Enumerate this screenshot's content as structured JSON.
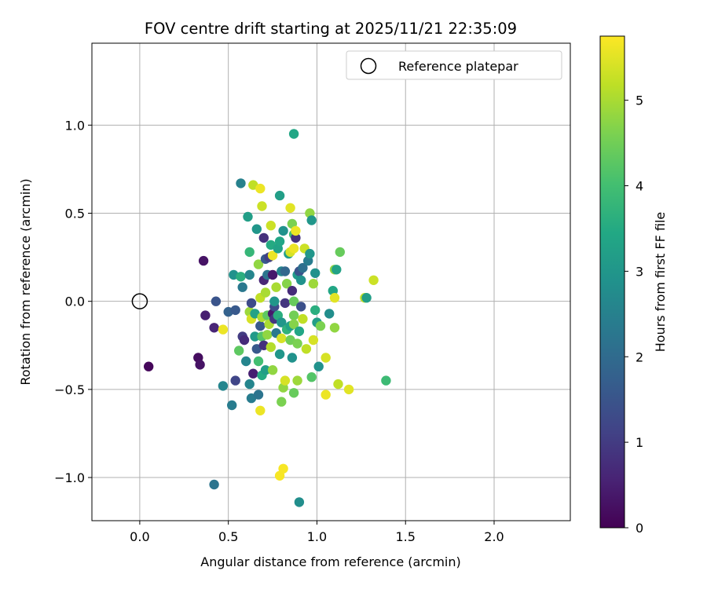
{
  "chart_data": {
    "type": "scatter",
    "title": "FOV centre drift starting at 2025/11/21 22:35:09",
    "xlabel": "Angular distance from reference (arcmin)",
    "ylabel": "Rotation from reference (arcmin)",
    "xlim": [
      -0.27,
      2.43
    ],
    "ylim": [
      -1.245,
      1.465
    ],
    "xticks": [
      0.0,
      0.5,
      1.0,
      1.5,
      2.0
    ],
    "xtick_labels": [
      "0.0",
      "0.5",
      "1.0",
      "1.5",
      "2.0"
    ],
    "yticks": [
      -1.0,
      -0.5,
      0.0,
      0.5,
      1.0
    ],
    "ytick_labels": [
      "−1.0",
      "−0.5",
      "0.0",
      "0.5",
      "1.0"
    ],
    "grid": true,
    "legend": {
      "placement": "top-right",
      "entries": [
        "Reference platepar"
      ]
    },
    "reference_point": {
      "x": 0.0,
      "y": 0.0,
      "label": "Reference platepar"
    },
    "colorbar": {
      "label": "Hours from first FF file",
      "colormap": "viridis",
      "range": [
        0,
        5.75
      ],
      "ticks": [
        0,
        1,
        2,
        3,
        4,
        5
      ],
      "tick_labels": [
        "0",
        "1",
        "2",
        "3",
        "4",
        "5"
      ]
    },
    "points": [
      {
        "x": 0.05,
        "y": -0.37,
        "t": 0.1
      },
      {
        "x": 0.33,
        "y": -0.32,
        "t": 0.2
      },
      {
        "x": 0.34,
        "y": -0.36,
        "t": 0.3
      },
      {
        "x": 0.36,
        "y": 0.23,
        "t": 0.3
      },
      {
        "x": 0.37,
        "y": -0.08,
        "t": 0.5
      },
      {
        "x": 0.42,
        "y": -0.15,
        "t": 0.6
      },
      {
        "x": 0.43,
        "y": 0.0,
        "t": 1.5
      },
      {
        "x": 0.42,
        "y": -1.04,
        "t": 2.2
      },
      {
        "x": 0.47,
        "y": -0.16,
        "t": 5.6
      },
      {
        "x": 0.47,
        "y": -0.48,
        "t": 2.6
      },
      {
        "x": 0.5,
        "y": -0.06,
        "t": 1.8
      },
      {
        "x": 0.52,
        "y": -0.59,
        "t": 2.4
      },
      {
        "x": 0.53,
        "y": 0.15,
        "t": 2.9
      },
      {
        "x": 0.54,
        "y": -0.05,
        "t": 1.6
      },
      {
        "x": 0.54,
        "y": -0.45,
        "t": 1.2
      },
      {
        "x": 0.56,
        "y": -0.28,
        "t": 4.3
      },
      {
        "x": 0.57,
        "y": 0.67,
        "t": 2.5
      },
      {
        "x": 0.57,
        "y": 0.14,
        "t": 3.6
      },
      {
        "x": 0.58,
        "y": -0.2,
        "t": 1.0
      },
      {
        "x": 0.58,
        "y": 0.08,
        "t": 2.3
      },
      {
        "x": 0.59,
        "y": -0.22,
        "t": 0.7
      },
      {
        "x": 0.6,
        "y": -0.34,
        "t": 2.6
      },
      {
        "x": 0.61,
        "y": 0.48,
        "t": 3.2
      },
      {
        "x": 0.62,
        "y": -0.06,
        "t": 4.9
      },
      {
        "x": 0.62,
        "y": 0.28,
        "t": 3.8
      },
      {
        "x": 0.62,
        "y": 0.15,
        "t": 2.6
      },
      {
        "x": 0.62,
        "y": -0.47,
        "t": 2.6
      },
      {
        "x": 0.63,
        "y": -0.55,
        "t": 2.4
      },
      {
        "x": 0.63,
        "y": -0.01,
        "t": 1.3
      },
      {
        "x": 0.63,
        "y": -0.1,
        "t": 5.4
      },
      {
        "x": 0.64,
        "y": 0.66,
        "t": 5.2
      },
      {
        "x": 0.64,
        "y": -0.41,
        "t": 0.5
      },
      {
        "x": 0.65,
        "y": -0.2,
        "t": 3.1
      },
      {
        "x": 0.65,
        "y": -0.07,
        "t": 3.3
      },
      {
        "x": 0.66,
        "y": 0.41,
        "t": 3.0
      },
      {
        "x": 0.66,
        "y": -0.27,
        "t": 1.6
      },
      {
        "x": 0.67,
        "y": -0.34,
        "t": 4.0
      },
      {
        "x": 0.67,
        "y": 0.21,
        "t": 4.8
      },
      {
        "x": 0.67,
        "y": -0.53,
        "t": 2.2
      },
      {
        "x": 0.68,
        "y": 0.02,
        "t": 5.2
      },
      {
        "x": 0.68,
        "y": -0.14,
        "t": 1.6
      },
      {
        "x": 0.68,
        "y": 0.64,
        "t": 5.6
      },
      {
        "x": 0.68,
        "y": -0.62,
        "t": 5.6
      },
      {
        "x": 0.69,
        "y": -0.2,
        "t": 4.2
      },
      {
        "x": 0.69,
        "y": -0.42,
        "t": 3.5
      },
      {
        "x": 0.69,
        "y": 0.54,
        "t": 5.3
      },
      {
        "x": 0.69,
        "y": -0.09,
        "t": 5.0
      },
      {
        "x": 0.7,
        "y": 0.12,
        "t": 0.6
      },
      {
        "x": 0.7,
        "y": 0.36,
        "t": 0.8
      },
      {
        "x": 0.7,
        "y": -0.25,
        "t": 0.8
      },
      {
        "x": 0.71,
        "y": 0.24,
        "t": 1.6
      },
      {
        "x": 0.71,
        "y": -0.39,
        "t": 3.2
      },
      {
        "x": 0.71,
        "y": 0.05,
        "t": 5.0
      },
      {
        "x": 0.72,
        "y": 0.15,
        "t": 2.2
      },
      {
        "x": 0.72,
        "y": -0.08,
        "t": 4.3
      },
      {
        "x": 0.72,
        "y": -0.19,
        "t": 4.8
      },
      {
        "x": 0.73,
        "y": -0.13,
        "t": 5.0
      },
      {
        "x": 0.73,
        "y": 0.25,
        "t": 1.1
      },
      {
        "x": 0.74,
        "y": 0.43,
        "t": 5.3
      },
      {
        "x": 0.74,
        "y": -0.26,
        "t": 5.1
      },
      {
        "x": 0.74,
        "y": 0.32,
        "t": 3.5
      },
      {
        "x": 0.75,
        "y": -0.07,
        "t": 0.4
      },
      {
        "x": 0.75,
        "y": 0.26,
        "t": 5.6
      },
      {
        "x": 0.75,
        "y": 0.15,
        "t": 0.4
      },
      {
        "x": 0.75,
        "y": -0.39,
        "t": 4.8
      },
      {
        "x": 0.76,
        "y": -0.03,
        "t": 1.3
      },
      {
        "x": 0.76,
        "y": -0.1,
        "t": 0.9
      },
      {
        "x": 0.76,
        "y": 0.0,
        "t": 3.0
      },
      {
        "x": 0.77,
        "y": -0.18,
        "t": 2.3
      },
      {
        "x": 0.77,
        "y": 0.08,
        "t": 5.0
      },
      {
        "x": 0.78,
        "y": 0.3,
        "t": 3.3
      },
      {
        "x": 0.78,
        "y": -0.08,
        "t": 3.6
      },
      {
        "x": 0.79,
        "y": 0.6,
        "t": 3.2
      },
      {
        "x": 0.79,
        "y": 0.34,
        "t": 3.4
      },
      {
        "x": 0.79,
        "y": -0.3,
        "t": 3.0
      },
      {
        "x": 0.79,
        "y": -0.99,
        "t": 5.7
      },
      {
        "x": 0.8,
        "y": -0.21,
        "t": 5.4
      },
      {
        "x": 0.8,
        "y": -0.57,
        "t": 4.6
      },
      {
        "x": 0.8,
        "y": -0.12,
        "t": 3.0
      },
      {
        "x": 0.8,
        "y": 0.17,
        "t": 2.6
      },
      {
        "x": 0.81,
        "y": 0.4,
        "t": 2.9
      },
      {
        "x": 0.81,
        "y": -0.49,
        "t": 4.8
      },
      {
        "x": 0.81,
        "y": -0.95,
        "t": 5.7
      },
      {
        "x": 0.82,
        "y": -0.45,
        "t": 5.4
      },
      {
        "x": 0.82,
        "y": -0.01,
        "t": 0.9
      },
      {
        "x": 0.82,
        "y": 0.17,
        "t": 1.9
      },
      {
        "x": 0.83,
        "y": -0.16,
        "t": 3.7
      },
      {
        "x": 0.83,
        "y": 0.1,
        "t": 4.7
      },
      {
        "x": 0.84,
        "y": 0.27,
        "t": 3.2
      },
      {
        "x": 0.85,
        "y": 0.53,
        "t": 5.5
      },
      {
        "x": 0.85,
        "y": -0.14,
        "t": 3.3
      },
      {
        "x": 0.85,
        "y": 0.28,
        "t": 5.4
      },
      {
        "x": 0.85,
        "y": -0.22,
        "t": 4.5
      },
      {
        "x": 0.86,
        "y": 0.06,
        "t": 0.7
      },
      {
        "x": 0.86,
        "y": -0.32,
        "t": 2.9
      },
      {
        "x": 0.86,
        "y": 0.44,
        "t": 4.6
      },
      {
        "x": 0.87,
        "y": 0.3,
        "t": 5.6
      },
      {
        "x": 0.87,
        "y": 0.38,
        "t": 3.9
      },
      {
        "x": 0.87,
        "y": -0.08,
        "t": 4.5
      },
      {
        "x": 0.87,
        "y": -0.13,
        "t": 4.7
      },
      {
        "x": 0.87,
        "y": -0.52,
        "t": 4.4
      },
      {
        "x": 0.87,
        "y": 0.0,
        "t": 4.4
      },
      {
        "x": 0.87,
        "y": 0.95,
        "t": 3.4
      },
      {
        "x": 0.88,
        "y": 0.36,
        "t": 0.8
      },
      {
        "x": 0.88,
        "y": 0.4,
        "t": 5.6
      },
      {
        "x": 0.89,
        "y": -0.24,
        "t": 4.6
      },
      {
        "x": 0.89,
        "y": 0.15,
        "t": 3.1
      },
      {
        "x": 0.89,
        "y": -0.45,
        "t": 4.9
      },
      {
        "x": 0.9,
        "y": -0.17,
        "t": 3.4
      },
      {
        "x": 0.9,
        "y": 0.17,
        "t": 1.5
      },
      {
        "x": 0.9,
        "y": -1.14,
        "t": 2.8
      },
      {
        "x": 0.91,
        "y": 0.12,
        "t": 2.9
      },
      {
        "x": 0.91,
        "y": -0.03,
        "t": 1.4
      },
      {
        "x": 0.92,
        "y": -0.1,
        "t": 5.2
      },
      {
        "x": 0.92,
        "y": 0.19,
        "t": 2.1
      },
      {
        "x": 0.93,
        "y": 0.3,
        "t": 5.3
      },
      {
        "x": 0.94,
        "y": -0.27,
        "t": 5.2
      },
      {
        "x": 0.95,
        "y": 0.23,
        "t": 2.4
      },
      {
        "x": 0.96,
        "y": 0.5,
        "t": 4.8
      },
      {
        "x": 0.96,
        "y": 0.27,
        "t": 3.0
      },
      {
        "x": 0.97,
        "y": 0.46,
        "t": 3.0
      },
      {
        "x": 0.97,
        "y": -0.43,
        "t": 4.2
      },
      {
        "x": 0.98,
        "y": 0.1,
        "t": 4.9
      },
      {
        "x": 0.98,
        "y": -0.22,
        "t": 5.4
      },
      {
        "x": 0.99,
        "y": -0.05,
        "t": 3.6
      },
      {
        "x": 0.99,
        "y": 0.16,
        "t": 2.9
      },
      {
        "x": 1.0,
        "y": -0.12,
        "t": 3.2
      },
      {
        "x": 1.01,
        "y": -0.37,
        "t": 2.9
      },
      {
        "x": 1.02,
        "y": -0.14,
        "t": 4.6
      },
      {
        "x": 1.05,
        "y": -0.32,
        "t": 5.4
      },
      {
        "x": 1.05,
        "y": -0.53,
        "t": 5.6
      },
      {
        "x": 1.07,
        "y": -0.07,
        "t": 2.8
      },
      {
        "x": 1.09,
        "y": 0.06,
        "t": 3.4
      },
      {
        "x": 1.1,
        "y": 0.02,
        "t": 5.5
      },
      {
        "x": 1.1,
        "y": -0.15,
        "t": 4.8
      },
      {
        "x": 1.1,
        "y": 0.18,
        "t": 4.8
      },
      {
        "x": 1.11,
        "y": 0.18,
        "t": 3.3
      },
      {
        "x": 1.12,
        "y": -0.47,
        "t": 5.2
      },
      {
        "x": 1.13,
        "y": 0.28,
        "t": 4.4
      },
      {
        "x": 1.18,
        "y": -0.5,
        "t": 5.5
      },
      {
        "x": 1.27,
        "y": 0.02,
        "t": 5.2
      },
      {
        "x": 1.28,
        "y": 0.02,
        "t": 3.2
      },
      {
        "x": 1.32,
        "y": 0.12,
        "t": 5.3
      },
      {
        "x": 1.39,
        "y": -0.45,
        "t": 3.9
      }
    ]
  }
}
